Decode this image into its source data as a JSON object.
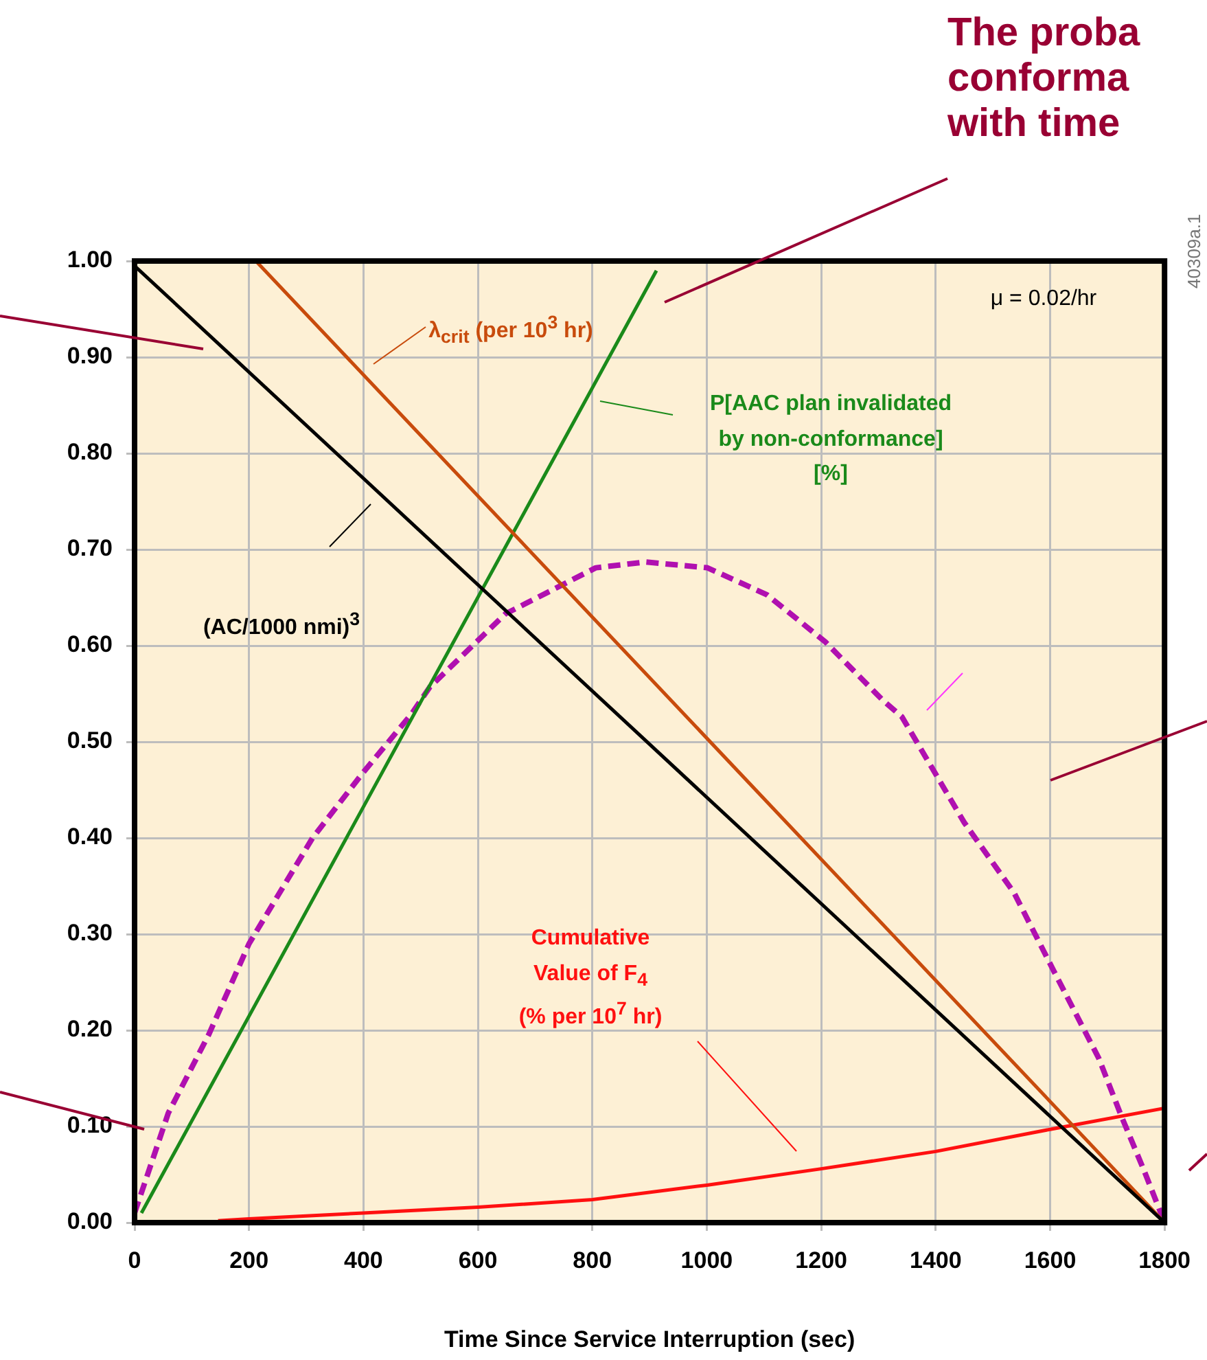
{
  "chart_data": {
    "type": "line",
    "title": "The proba\nconforma\nwith time",
    "xlabel": "Time Since Service Interruption (sec)",
    "xlim": [
      0,
      1800
    ],
    "xticks": [
      0,
      200,
      400,
      600,
      800,
      1000,
      1200,
      1400,
      1600,
      1800
    ],
    "ylim": [
      0,
      1
    ],
    "yticks": [
      {
        "value": 0,
        "label": "0.00"
      },
      {
        "value": 0.1,
        "label": "0.10"
      },
      {
        "value": 0.2,
        "label": "0.20"
      },
      {
        "value": 0.3,
        "label": "0.30"
      },
      {
        "value": 0.4,
        "label": "0.40"
      },
      {
        "value": 0.5,
        "label": "0.50"
      },
      {
        "value": 0.6,
        "label": "0.60"
      },
      {
        "value": 0.7,
        "label": "0.70"
      },
      {
        "value": 0.8,
        "label": "0.80"
      },
      {
        "value": 0.9,
        "label": "0.90"
      },
      {
        "value": 1,
        "label": "1.00"
      }
    ],
    "grid": true,
    "legend": false,
    "marker": "none",
    "series": [
      {
        "color": "#000000",
        "x": [
          0,
          1800
        ],
        "values": [
          0.995,
          0
        ]
      },
      {
        "color": "#c84b0c",
        "x": [
          212,
          1800
        ],
        "values": [
          1,
          0
        ]
      },
      {
        "color": "#1a8a1a",
        "x": [
          12,
          912
        ],
        "values": [
          0.01,
          0.99
        ]
      },
      {
        "color": "#ff1010",
        "x": [
          146,
          200,
          400,
          600,
          800,
          1000,
          1200,
          1400,
          1600,
          1800
        ],
        "values": [
          0.002,
          0.004,
          0.01,
          0.016,
          0.024,
          0.039,
          0.056,
          0.074,
          0.097,
          0.119
        ]
      },
      {
        "color": "#b010b0",
        "line_style": "dashed",
        "x": [
          0,
          59,
          130,
          200,
          311,
          398,
          484,
          516,
          648,
          806,
          893,
          1001,
          1105,
          1207,
          1308,
          1341,
          1450,
          1537,
          1607,
          1685,
          1725,
          1765,
          1800
        ],
        "values": [
          0.01,
          0.114,
          0.196,
          0.29,
          0.4,
          0.467,
          0.529,
          0.557,
          0.633,
          0.681,
          0.687,
          0.681,
          0.653,
          0.604,
          0.543,
          0.526,
          0.416,
          0.343,
          0.261,
          0.171,
          0.11,
          0.053,
          0
        ]
      }
    ],
    "annotations": [
      "λ$_{crit}$ (per 10$^{3}$ hr)",
      "P[AAC plan invalidated\nby non-conformance]\n[%]",
      "(AC/1000 nmi)$^{3}$",
      "Cumulative\nValue of F$_{4}$\n(% per 10$^{7}$ hr)",
      "μ = 0.02/hr",
      "40309a.1"
    ]
  }
}
